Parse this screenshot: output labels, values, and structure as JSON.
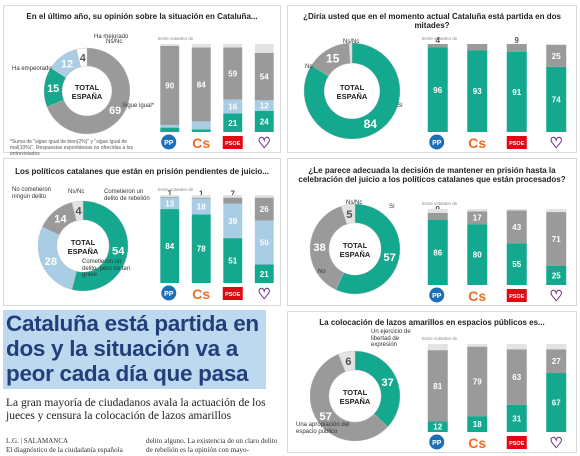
{
  "charts": [
    {
      "id": "c1",
      "title": "En el último año, su opinión sobre la situación en Cataluña...",
      "donut": {
        "center": [
          "TOTAL",
          "ESPAÑA"
        ],
        "segments": [
          {
            "value": 69,
            "color": "#9a9a9a",
            "label": "Ha empeorado"
          },
          {
            "value": 15,
            "color": "#14a88f",
            "label": "Ha mejorado"
          },
          {
            "value": 12,
            "color": "#a9cde4",
            "label": "Sigue igual*"
          },
          {
            "value": 4,
            "color": "#ffffff",
            "label": "Ns/Nc"
          }
        ]
      },
      "bars": {
        "axis_label": "Entre votantes de",
        "stacks": [
          [
            {
              "v": 5,
              "c": "#14a88f"
            },
            {
              "v": 3,
              "c": "#a9cde4"
            },
            {
              "v": 90,
              "c": "#9a9a9a"
            },
            {
              "v": 2,
              "c": "#e3e3e3"
            }
          ],
          [
            {
              "v": 3,
              "c": "#14a88f"
            },
            {
              "v": 9,
              "c": "#a9cde4"
            },
            {
              "v": 84,
              "c": "#9a9a9a"
            },
            {
              "v": 4,
              "c": "#e3e3e3"
            }
          ],
          [
            {
              "v": 21,
              "c": "#14a88f"
            },
            {
              "v": 16,
              "c": "#a9cde4"
            },
            {
              "v": 59,
              "c": "#9a9a9a"
            },
            {
              "v": 4,
              "c": "#e3e3e3"
            }
          ],
          [
            {
              "v": 24,
              "c": "#14a88f"
            },
            {
              "v": 12,
              "c": "#a9cde4"
            },
            {
              "v": 54,
              "c": "#9a9a9a"
            },
            {
              "v": 10,
              "c": "#e3e3e3"
            }
          ]
        ],
        "shown": [
          [
            "5",
            "3",
            "90"
          ],
          [
            "3",
            "",
            "84"
          ],
          [
            "21",
            "16",
            "59"
          ],
          [
            "24",
            "12",
            "54"
          ]
        ]
      },
      "note": "*Suma de \"sigue igual de bien(2%)\" y \"sigue igual de mal(10%)\". Respuestas espontáneas no ofrecidas a los entrevistados"
    },
    {
      "id": "c2",
      "title": "¿Diría usted que en el momento actual Cataluña está partida en dos mitades?",
      "donut": {
        "center": [
          "TOTAL",
          "ESPAÑA"
        ],
        "segments": [
          {
            "value": 84,
            "color": "#14a88f",
            "label": "Sí"
          },
          {
            "value": 15,
            "color": "#9a9a9a",
            "label": "No"
          },
          {
            "value": 1,
            "color": "#e3e3e3",
            "label": "Ns/Nc"
          }
        ]
      },
      "bars": {
        "axis_label": "Entre votantes de",
        "stacks": [
          [
            {
              "v": 96,
              "c": "#14a88f"
            },
            {
              "v": 4,
              "c": "#9a9a9a"
            }
          ],
          [
            {
              "v": 93,
              "c": "#14a88f"
            },
            {
              "v": 7,
              "c": "#9a9a9a"
            }
          ],
          [
            {
              "v": 91,
              "c": "#14a88f"
            },
            {
              "v": 9,
              "c": "#9a9a9a"
            }
          ],
          [
            {
              "v": 74,
              "c": "#14a88f"
            },
            {
              "v": 25,
              "c": "#9a9a9a"
            },
            {
              "v": 1,
              "c": "#e3e3e3"
            }
          ]
        ],
        "shown": [
          [
            "96",
            "4"
          ],
          [
            "93",
            ""
          ],
          [
            "91",
            "9"
          ],
          [
            "74",
            "25"
          ]
        ]
      }
    },
    {
      "id": "c3",
      "title": "Los políticos catalanes que están en prisión pendientes de juicio...",
      "donut": {
        "center": [
          "TOTAL",
          "ESPAÑA"
        ],
        "segments": [
          {
            "value": 54,
            "color": "#14a88f",
            "label": "Cometieron un delito de rebelión"
          },
          {
            "value": 28,
            "color": "#a9cde4",
            "label": "Cometieron un delito, pero no tan grave"
          },
          {
            "value": 14,
            "color": "#9a9a9a",
            "label": "No cometieron ningún delito"
          },
          {
            "value": 4,
            "color": "#e3e3e3",
            "label": "Ns/Nc"
          }
        ]
      },
      "bars": {
        "axis_label": "Entre votantes de",
        "stacks": [
          [
            {
              "v": 84,
              "c": "#14a88f"
            },
            {
              "v": 13,
              "c": "#a9cde4"
            },
            {
              "v": 1,
              "c": "#9a9a9a"
            },
            {
              "v": 2,
              "c": "#e3e3e3"
            }
          ],
          [
            {
              "v": 78,
              "c": "#14a88f"
            },
            {
              "v": 18,
              "c": "#a9cde4"
            },
            {
              "v": 1,
              "c": "#9a9a9a"
            },
            {
              "v": 3,
              "c": "#e3e3e3"
            }
          ],
          [
            {
              "v": 51,
              "c": "#14a88f"
            },
            {
              "v": 39,
              "c": "#a9cde4"
            },
            {
              "v": 7,
              "c": "#9a9a9a"
            },
            {
              "v": 3,
              "c": "#e3e3e3"
            }
          ],
          [
            {
              "v": 21,
              "c": "#14a88f"
            },
            {
              "v": 50,
              "c": "#a9cde4"
            },
            {
              "v": 26,
              "c": "#9a9a9a"
            },
            {
              "v": 3,
              "c": "#e3e3e3"
            }
          ]
        ],
        "shown": [
          [
            "84",
            "13",
            "1"
          ],
          [
            "78",
            "18",
            "1"
          ],
          [
            "51",
            "39",
            "7"
          ],
          [
            "21",
            "50",
            "26"
          ]
        ]
      }
    },
    {
      "id": "c4",
      "title": "¿Le parece adecuada la decisión de mantener en prisión hasta la celebración del juicio a los políticos catalanes que están procesados?",
      "donut": {
        "center": [
          "TOTAL",
          "ESPAÑA"
        ],
        "segments": [
          {
            "value": 57,
            "color": "#14a88f",
            "label": "Sí"
          },
          {
            "value": 38,
            "color": "#9a9a9a",
            "label": "No"
          },
          {
            "value": 5,
            "color": "#e3e3e3",
            "label": "Ns/Nc"
          }
        ]
      },
      "bars": {
        "axis_label": "Entre votantes de",
        "stacks": [
          [
            {
              "v": 86,
              "c": "#14a88f"
            },
            {
              "v": 9,
              "c": "#9a9a9a"
            },
            {
              "v": 5,
              "c": "#e3e3e3"
            }
          ],
          [
            {
              "v": 80,
              "c": "#14a88f"
            },
            {
              "v": 17,
              "c": "#9a9a9a"
            },
            {
              "v": 3,
              "c": "#e3e3e3"
            }
          ],
          [
            {
              "v": 55,
              "c": "#14a88f"
            },
            {
              "v": 43,
              "c": "#9a9a9a"
            },
            {
              "v": 2,
              "c": "#e3e3e3"
            }
          ],
          [
            {
              "v": 25,
              "c": "#14a88f"
            },
            {
              "v": 71,
              "c": "#9a9a9a"
            },
            {
              "v": 4,
              "c": "#e3e3e3"
            }
          ]
        ],
        "shown": [
          [
            "86",
            "9"
          ],
          [
            "80",
            "17"
          ],
          [
            "55",
            "43"
          ],
          [
            "25",
            "71"
          ]
        ]
      }
    },
    {
      "id": "c5",
      "title": "La colocación de lazos amarillos en espacios públicos es...",
      "donut": {
        "center": [
          "TOTAL",
          "ESPAÑA"
        ],
        "segments": [
          {
            "value": 37,
            "color": "#14a88f",
            "label": "Un ejercicio de libertad de expresión"
          },
          {
            "value": 57,
            "color": "#9a9a9a",
            "label": "Una apropiación del espacio público"
          },
          {
            "value": 6,
            "color": "#e3e3e3",
            "label": "Ns/Nc"
          }
        ]
      },
      "bars": {
        "axis_label": "Entre votantes de",
        "stacks": [
          [
            {
              "v": 12,
              "c": "#14a88f"
            },
            {
              "v": 81,
              "c": "#9a9a9a"
            },
            {
              "v": 7,
              "c": "#e3e3e3"
            }
          ],
          [
            {
              "v": 18,
              "c": "#14a88f"
            },
            {
              "v": 79,
              "c": "#9a9a9a"
            },
            {
              "v": 3,
              "c": "#e3e3e3"
            }
          ],
          [
            {
              "v": 31,
              "c": "#14a88f"
            },
            {
              "v": 63,
              "c": "#9a9a9a"
            },
            {
              "v": 6,
              "c": "#e3e3e3"
            }
          ],
          [
            {
              "v": 67,
              "c": "#14a88f"
            },
            {
              "v": 27,
              "c": "#9a9a9a"
            },
            {
              "v": 6,
              "c": "#e3e3e3"
            }
          ]
        ],
        "shown": [
          [
            "12",
            "81"
          ],
          [
            "18",
            "79"
          ],
          [
            "31",
            "63"
          ],
          [
            "67",
            "27"
          ]
        ]
      }
    }
  ],
  "parties": [
    {
      "name": "pp-logo",
      "text": "PP",
      "color": "#1f6fb8"
    },
    {
      "name": "cs-logo",
      "text": "Cs",
      "color": "#f26c22"
    },
    {
      "name": "psoe-logo",
      "text": "PSOE",
      "color": "#e30613"
    },
    {
      "name": "podemos-logo",
      "text": "♡",
      "color": "#6b2d7b"
    }
  ],
  "article": {
    "headline": "Cataluña está partida en dos y la situación va a peor cada día que pasa",
    "subhead": "La gran mayoría de ciudadanos avala la actuación de los jueces y censura la colocación de lazos amarillos",
    "byline": "L.G. | SALAMANCA",
    "col1": "El diagnóstico de la ciudadanía española",
    "col2": "delito alguno. La existencia de un claro delito de rebelión es la opinión con mayo-"
  }
}
